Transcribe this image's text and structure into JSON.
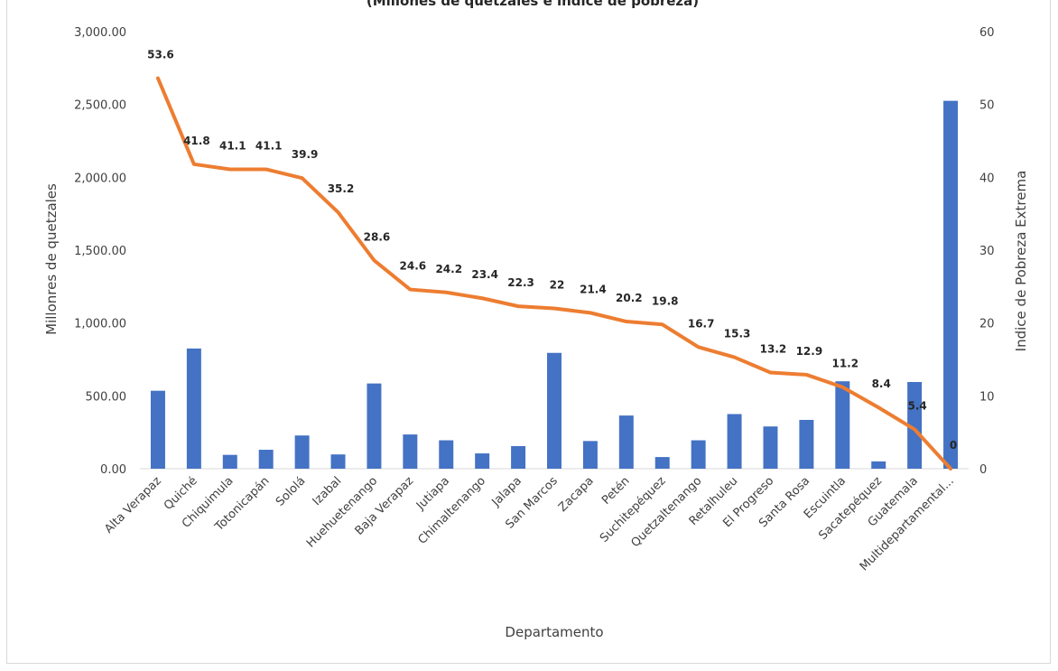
{
  "chart_data": {
    "type": "bar",
    "title": "(Millones de quetzales e índice de pobreza)",
    "xlabel": "Departamento",
    "ylabel": "Millonres de quetzales",
    "y2label": "Indice de Pobreza Extrema",
    "ylim": [
      0,
      3000
    ],
    "y2lim": [
      0,
      60
    ],
    "yticks": [
      "0.00",
      "500.00",
      "1,000.00",
      "1,500.00",
      "2,000.00",
      "2,500.00",
      "3,000.00"
    ],
    "y2ticks": [
      "0",
      "10",
      "20",
      "30",
      "40",
      "50",
      "60"
    ],
    "grid": false,
    "categories": [
      "Alta Verapaz",
      "Quiché",
      "Chiquimula",
      "Totonicapán",
      "Sololá",
      "Izabal",
      "Huehuetenango",
      "Baja Verapaz",
      "Jutiapa",
      "Chimaltenango",
      "Jalapa",
      "San Marcos",
      "Zacapa",
      "Petén",
      "Suchitepéquez",
      "Quetzaltenango",
      "Retalhuleu",
      "El Progreso",
      "Santa Rosa",
      "Escuintla",
      "Sacatepéquez",
      "Guatemala",
      "Multidepartamental..."
    ],
    "series": [
      {
        "type": "bar",
        "axis": "left",
        "color": "#4472c4",
        "values": [
          535,
          825,
          95,
          130,
          228,
          98,
          585,
          235,
          195,
          105,
          155,
          795,
          190,
          365,
          80,
          195,
          375,
          290,
          335,
          600,
          50,
          595,
          2525
        ]
      },
      {
        "type": "line",
        "axis": "right",
        "color": "#ed7d31",
        "values": [
          53.6,
          41.8,
          41.1,
          41.1,
          39.9,
          35.2,
          28.6,
          24.6,
          24.2,
          23.4,
          22.3,
          22,
          21.4,
          20.2,
          19.8,
          16.7,
          15.3,
          13.2,
          12.9,
          11.2,
          8.4,
          5.4,
          0
        ],
        "labels": [
          "53.6",
          "41.8",
          "41.1",
          "41.1",
          "39.9",
          "35.2",
          "28.6",
          "24.6",
          "24.2",
          "23.4",
          "22.3",
          "22",
          "21.4",
          "20.2",
          "19.8",
          "16.7",
          "15.3",
          "13.2",
          "12.9",
          "11.2",
          "8.4",
          "5.4",
          "0"
        ]
      }
    ]
  }
}
